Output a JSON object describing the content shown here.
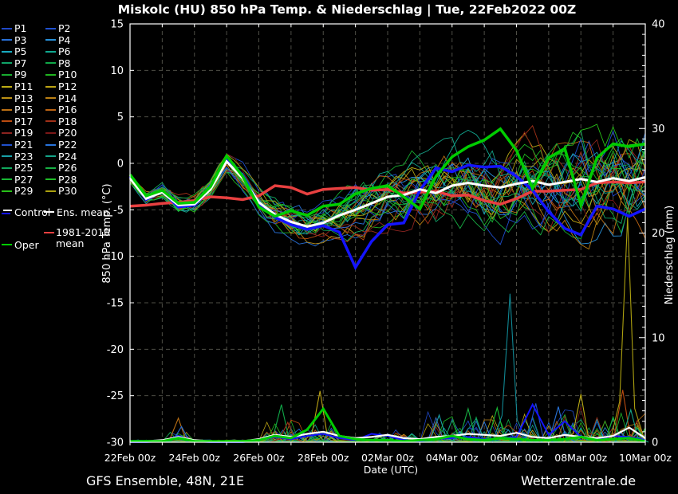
{
  "title": "Miskolc  (HU)  850 hPa Temp. & Niederschlag | Tue, 22Feb2022 00Z",
  "footer": {
    "left": "GFS Ensemble, 48N, 21E",
    "right": "Wetterzentrale.de"
  },
  "colors": {
    "background": "#000000",
    "frame": "#ffffff",
    "grid": "#4e4e46",
    "text": "#ffffff"
  },
  "legend": {
    "members": [
      {
        "label": "P1",
        "color": "#2048c8"
      },
      {
        "label": "P2",
        "color": "#2050d0"
      },
      {
        "label": "P3",
        "color": "#2870d8"
      },
      {
        "label": "P4",
        "color": "#2890d8"
      },
      {
        "label": "P5",
        "color": "#18aac0"
      },
      {
        "label": "P6",
        "color": "#10a890"
      },
      {
        "label": "P7",
        "color": "#10a468"
      },
      {
        "label": "P8",
        "color": "#10a848"
      },
      {
        "label": "P9",
        "color": "#18ac30"
      },
      {
        "label": "P10",
        "color": "#20b420"
      },
      {
        "label": "P11",
        "color": "#bcac14"
      },
      {
        "label": "P12",
        "color": "#bca414"
      },
      {
        "label": "P13",
        "color": "#bc9014"
      },
      {
        "label": "P14",
        "color": "#bc8014"
      },
      {
        "label": "P15",
        "color": "#bc7014"
      },
      {
        "label": "P16",
        "color": "#bc6414"
      },
      {
        "label": "P17",
        "color": "#bc4c10"
      },
      {
        "label": "P18",
        "color": "#a03018"
      },
      {
        "label": "P19",
        "color": "#8c2420"
      },
      {
        "label": "P20",
        "color": "#7c1818"
      },
      {
        "label": "P21",
        "color": "#2050cc"
      },
      {
        "label": "P22",
        "color": "#2874dc"
      },
      {
        "label": "P23",
        "color": "#18a0a8"
      },
      {
        "label": "P24",
        "color": "#14a488"
      },
      {
        "label": "P25",
        "color": "#10a85c"
      },
      {
        "label": "P26",
        "color": "#18b044"
      },
      {
        "label": "P27",
        "color": "#18b834"
      },
      {
        "label": "P28",
        "color": "#20bc28"
      },
      {
        "label": "P29",
        "color": "#28c018"
      },
      {
        "label": "P30",
        "color": "#aca010"
      }
    ],
    "control": {
      "label": "Control",
      "colors": [
        "#ffffff",
        "#1414ff"
      ]
    },
    "ens_mean": {
      "label": "Ens. mean",
      "color": "#ffffff"
    },
    "clim": {
      "label_line1": "1981-2010",
      "label_line2": "mean",
      "color": "#e84040"
    },
    "oper": {
      "label": "Oper",
      "color": "#00cc00"
    }
  },
  "axes": {
    "x": {
      "label": "Date (UTC)",
      "tick_labels": [
        "22Feb 00z",
        "24Feb 00z",
        "26Feb 00z",
        "28Feb 00z",
        "02Mar 00z",
        "04Mar 00z",
        "06Mar 00z",
        "08Mar 00z",
        "10Mar 00z"
      ],
      "label_every_days": 2,
      "days_total": 16
    },
    "y_left": {
      "label": "850 hPa Temp. (°C)",
      "min": -30,
      "max": 15,
      "ticks": [
        15,
        10,
        5,
        0,
        -5,
        -10,
        -15,
        -20,
        -25,
        -30
      ]
    },
    "y_right": {
      "label": "Niederschlag (mm)",
      "min": 0,
      "max": 40,
      "ticks": [
        40,
        30,
        20,
        10,
        0
      ],
      "minor_step_mm": 1
    }
  },
  "chart_data": {
    "type": "line",
    "title": "Miskolc (HU) 850 hPa Temp. & Niederschlag | Tue, 22Feb2022 00Z",
    "xlabel": "Date (UTC)",
    "ylabel_left": "850 hPa Temp. (°C)",
    "ylabel_right": "Niederschlag (mm)",
    "x_start": "22Feb2022 00Z",
    "x_end": "10Mar2022 00Z",
    "x_step_hours": 12,
    "ylim_temp": [
      -30,
      15
    ],
    "ylim_precip": [
      0,
      40
    ],
    "grid": true,
    "series": [
      {
        "name": "1981-2010 mean",
        "color": "#e84040",
        "width": 3.5,
        "temp": [
          -4.6,
          -4.5,
          -4.3,
          -4.2,
          -4.0,
          -3.6,
          -3.7,
          -3.9,
          -3.5,
          -2.4,
          -2.6,
          -3.3,
          -2.8,
          -2.7,
          -2.6,
          -2.9,
          -2.8,
          -3.2,
          -3.1,
          -3.0,
          -3.5,
          -3.4,
          -4.0,
          -4.4,
          -3.8,
          -3.0,
          -3.0,
          -2.9,
          -2.8,
          -2.1,
          -2.0,
          -2.1,
          -2.0
        ]
      },
      {
        "name": "Control",
        "color": "#1414ff",
        "width": 3.5,
        "precip_width": 2,
        "temp": [
          -1.4,
          -3.9,
          -3.0,
          -4.7,
          -4.5,
          -2.7,
          0.6,
          -1.3,
          -4.4,
          -5.8,
          -6.6,
          -7.1,
          -6.7,
          -7.4,
          -11.2,
          -8.4,
          -6.6,
          -6.4,
          -2.9,
          -0.5,
          -0.9,
          -0.2,
          -0.4,
          -0.3,
          -1.4,
          -2.9,
          -5.2,
          -7.0,
          -7.7,
          -4.6,
          -4.9,
          -5.7,
          -4.9
        ],
        "precip": [
          0,
          0,
          0.1,
          0.6,
          0.1,
          0,
          0,
          0,
          0.2,
          0.5,
          0.3,
          0.6,
          0.8,
          0.4,
          0.2,
          0.8,
          0.6,
          0.2,
          0.1,
          0.3,
          0.4,
          0.5,
          0.3,
          0.4,
          0.5,
          3.6,
          0.7,
          2.0,
          0.5,
          0.3,
          0.6,
          0.5,
          0.2
        ]
      },
      {
        "name": "Ens. mean",
        "color": "#ffffff",
        "width": 3,
        "precip_width": 2.2,
        "temp": [
          -1.6,
          -3.8,
          -3.1,
          -4.5,
          -4.4,
          -2.8,
          0.2,
          -1.6,
          -4.2,
          -5.5,
          -6.3,
          -6.8,
          -6.4,
          -5.6,
          -5.0,
          -4.3,
          -3.6,
          -3.4,
          -2.8,
          -3.2,
          -2.4,
          -2.1,
          -2.4,
          -2.6,
          -2.2,
          -1.9,
          -2.3,
          -2.0,
          -1.7,
          -2.0,
          -1.6,
          -1.9,
          -1.5
        ],
        "precip": [
          0.1,
          0.1,
          0.2,
          0.5,
          0.2,
          0.1,
          0.1,
          0.1,
          0.3,
          0.7,
          0.5,
          0.8,
          1.0,
          0.6,
          0.4,
          0.5,
          0.7,
          0.4,
          0.3,
          0.5,
          0.6,
          0.8,
          0.7,
          0.6,
          0.9,
          0.5,
          0.4,
          0.7,
          0.5,
          0.4,
          0.6,
          1.4,
          0.4
        ]
      },
      {
        "name": "Oper",
        "color": "#00cc00",
        "width": 3.5,
        "precip_width": 3,
        "temp": [
          -1.2,
          -3.5,
          -2.9,
          -4.3,
          -4.2,
          -2.5,
          0.8,
          -1.4,
          -4.7,
          -5.7,
          -5.1,
          -5.6,
          -4.6,
          -4.4,
          -3.3,
          -2.7,
          -2.4,
          -3.6,
          -4.9,
          -1.4,
          0.7,
          1.8,
          2.5,
          3.7,
          1.4,
          -2.7,
          0.6,
          1.6,
          -4.5,
          0.6,
          2.1,
          1.8,
          2.1
        ],
        "precip": [
          0.1,
          0.1,
          0.1,
          0.4,
          0.1,
          0.1,
          0.1,
          0.1,
          0.2,
          0.6,
          0.4,
          1.2,
          3.2,
          0.6,
          0.3,
          0.2,
          0.2,
          0.1,
          0.2,
          0.3,
          0.6,
          0.3,
          0.2,
          0.4,
          0.3,
          0.2,
          0.2,
          0.3,
          0.5,
          0.2,
          0.3,
          0.4,
          0.1
        ]
      }
    ],
    "ensemble_spread_degC": [
      0.6,
      1.0,
      1.2,
      1.3,
      1.4,
      1.5,
      1.5,
      1.8,
      2.0,
      2.2,
      2.4,
      2.6,
      3.0,
      3.2,
      3.5,
      3.7,
      4.2,
      4.4,
      4.6,
      4.8,
      5.2,
      5.4,
      5.6,
      5.6,
      5.8,
      6.0,
      6.2,
      6.4,
      6.6,
      6.8,
      7.2,
      7.6,
      8.0
    ],
    "wet_windows": [
      {
        "from": 1.2,
        "to": 1.9,
        "max_mm": 1.6
      },
      {
        "from": 4.2,
        "to": 6.3,
        "max_mm": 2.8
      },
      {
        "from": 7.6,
        "to": 8.9,
        "max_mm": 1.2
      },
      {
        "from": 9.2,
        "to": 12.7,
        "max_mm": 3.0
      },
      {
        "from": 12.9,
        "to": 16,
        "max_mm": 3.5
      }
    ],
    "precip_events": [
      {
        "member": "P15",
        "day": 1.5,
        "peak_mm": 2.3,
        "color": "#bc7014"
      },
      {
        "member": "P3",
        "day": 1.6,
        "peak_mm": 1.5,
        "color": "#2870d8"
      },
      {
        "member": "P8",
        "day": 4.7,
        "peak_mm": 3.6,
        "color": "#10a848"
      },
      {
        "member": "P18",
        "day": 4.9,
        "peak_mm": 1.9,
        "color": "#a03018"
      },
      {
        "member": "P12",
        "day": 5.9,
        "peak_mm": 4.9,
        "color": "#bca414"
      },
      {
        "member": "P23",
        "day": 9.6,
        "peak_mm": 2.6,
        "color": "#18a0a8"
      },
      {
        "member": "P26",
        "day": 10.5,
        "peak_mm": 3.2,
        "color": "#18b044"
      },
      {
        "member": "P27",
        "day": 11.4,
        "peak_mm": 3.3,
        "color": "#18b834"
      },
      {
        "member": "P23",
        "day": 11.8,
        "peak_mm": 14.2,
        "color": "#108894"
      },
      {
        "member": "P21",
        "day": 12.6,
        "peak_mm": 3.7,
        "color": "#2050cc"
      },
      {
        "member": "P22",
        "day": 13.3,
        "peak_mm": 3.4,
        "color": "#2874dc"
      },
      {
        "member": "P11",
        "day": 14.0,
        "peak_mm": 4.6,
        "color": "#bcac14"
      },
      {
        "member": "P17",
        "day": 15.3,
        "peak_mm": 5.0,
        "color": "#bc4c10"
      },
      {
        "member": "P30",
        "day": 15.45,
        "peak_mm": 21.5,
        "color": "#aca010"
      },
      {
        "member": "P24",
        "day": 15.55,
        "peak_mm": 3.1,
        "color": "#14a488"
      }
    ]
  }
}
